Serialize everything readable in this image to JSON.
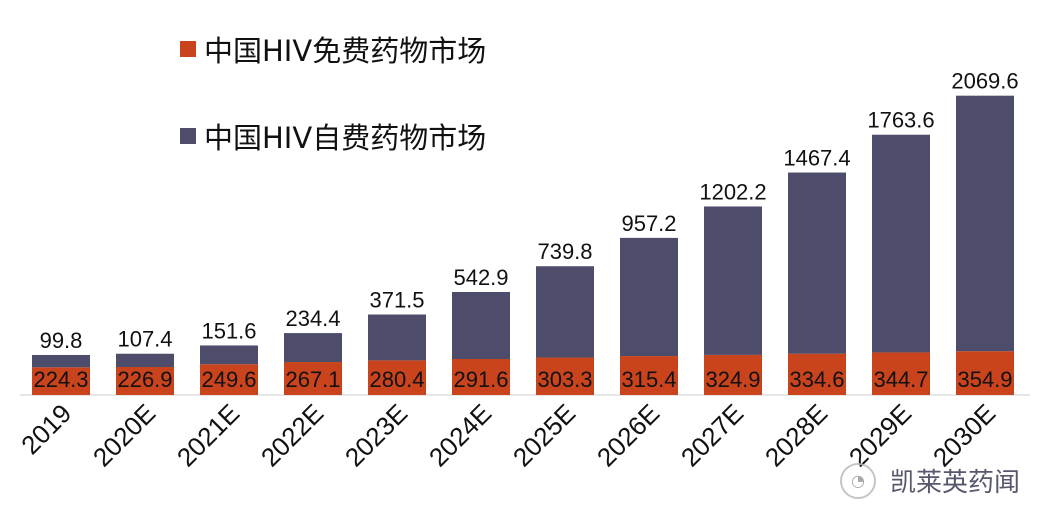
{
  "chart_data": {
    "type": "bar",
    "stacked": true,
    "categories": [
      "2019",
      "2020E",
      "2021E",
      "2022E",
      "2023E",
      "2024E",
      "2025E",
      "2026E",
      "2027E",
      "2028E",
      "2029E",
      "2030E"
    ],
    "series": [
      {
        "name": "中国HIV免费药物市场",
        "color": "#c9441c",
        "values": [
          224.3,
          226.9,
          249.6,
          267.1,
          280.4,
          291.6,
          303.3,
          315.4,
          324.9,
          334.6,
          344.7,
          354.9
        ]
      },
      {
        "name": "中国HIV自费药物市场",
        "color": "#4d4d6b",
        "values": [
          99.8,
          107.4,
          151.6,
          234.4,
          371.5,
          542.9,
          739.8,
          957.2,
          1202.2,
          1467.4,
          1763.6,
          2069.6
        ]
      }
    ],
    "title": "",
    "xlabel": "",
    "ylabel": "",
    "grid": false,
    "legend_position": "top-left"
  },
  "watermark": {
    "text": "凯莱英药闻",
    "icon": "wechat-icon"
  }
}
